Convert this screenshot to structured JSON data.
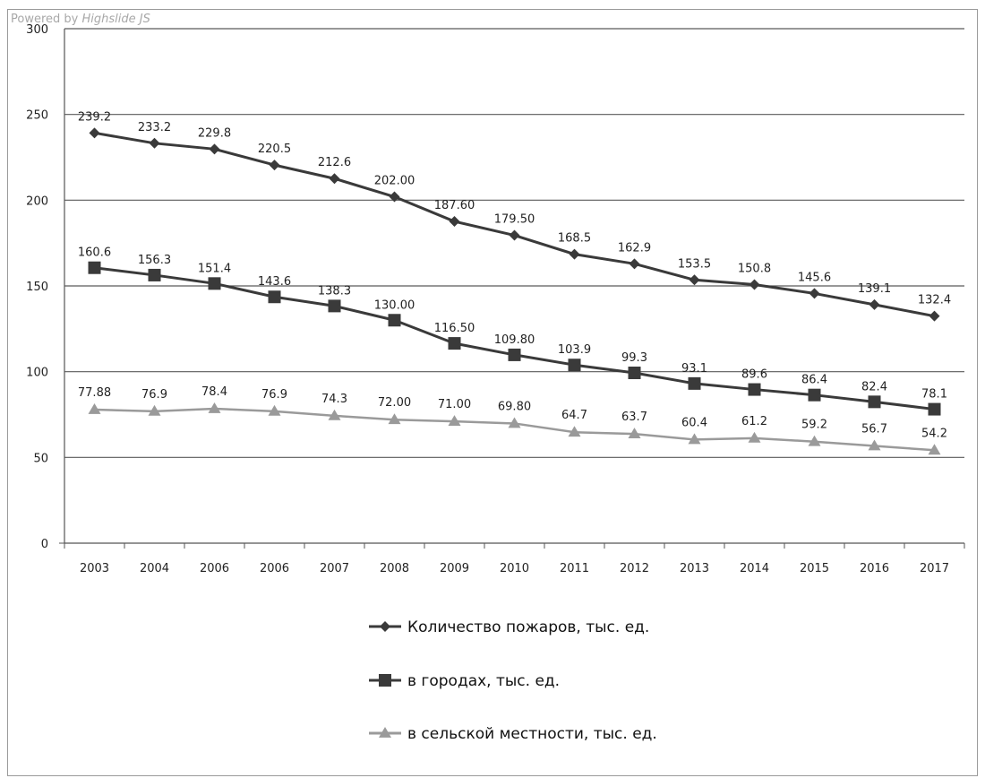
{
  "credit": {
    "prefix": "Powered by ",
    "brand": "Highslide JS"
  },
  "chart_data": {
    "type": "line",
    "categories": [
      "2003",
      "2004",
      "2006",
      "2006",
      "2007",
      "2008",
      "2009",
      "2010",
      "2011",
      "2012",
      "2013",
      "2014",
      "2015",
      "2016",
      "2017"
    ],
    "ylim": [
      0,
      300
    ],
    "yticks": [
      "0",
      "50",
      "100",
      "150",
      "200",
      "250",
      "300"
    ],
    "grid": true,
    "legend_position": "bottom",
    "series": [
      {
        "name": "Количество пожаров, тыс. ед.",
        "marker": "diamond",
        "color": "#3a3a3a",
        "values": [
          239.2,
          233.2,
          229.8,
          220.5,
          212.6,
          202.0,
          187.6,
          179.5,
          168.5,
          162.9,
          153.5,
          150.8,
          145.6,
          139.1,
          132.4
        ],
        "labels": [
          "239.2",
          "233.2",
          "229.8",
          "220.5",
          "212.6",
          "202.00",
          "187.60",
          "179.50",
          "168.5",
          "162.9",
          "153.5",
          "150.8",
          "145.6",
          "139.1",
          "132.4"
        ]
      },
      {
        "name": "в городах, тыс. ед.",
        "marker": "square",
        "color": "#3a3a3a",
        "values": [
          160.6,
          156.3,
          151.4,
          143.6,
          138.3,
          130.0,
          116.5,
          109.8,
          103.9,
          99.3,
          93.1,
          89.6,
          86.4,
          82.4,
          78.1
        ],
        "labels": [
          "160.6",
          "156.3",
          "151.4",
          "143.6",
          "138.3",
          "130.00",
          "116.50",
          "109.80",
          "103.9",
          "99.3",
          "93.1",
          "89.6",
          "86.4",
          "82.4",
          "78.1"
        ]
      },
      {
        "name": "в сельской местности, тыс. ед.",
        "marker": "triangle",
        "color": "#9a9a9a",
        "values": [
          77.88,
          76.9,
          78.4,
          76.9,
          74.3,
          72.0,
          71.0,
          69.8,
          64.7,
          63.7,
          60.4,
          61.2,
          59.2,
          56.7,
          54.2
        ],
        "labels": [
          "77.88",
          "76.9",
          "78.4",
          "76.9",
          "74.3",
          "72.00",
          "71.00",
          "69.80",
          "64.7",
          "63.7",
          "60.4",
          "61.2",
          "59.2",
          "56.7",
          "54.2"
        ]
      }
    ]
  }
}
